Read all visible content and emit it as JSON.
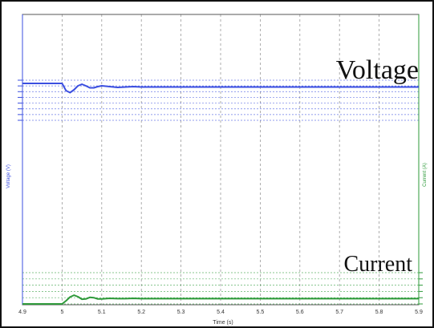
{
  "chart_data": {
    "type": "line",
    "xlabel": "Time (s)",
    "ylabel_left": "Voltage (V)",
    "ylabel_right": "Current (A)",
    "xlim": [
      4.9,
      5.9
    ],
    "x_ticks": [
      "4.9",
      "5",
      "5.1",
      "5.2",
      "5.3",
      "5.4",
      "5.5",
      "5.6",
      "5.7",
      "5.8",
      "5.9"
    ],
    "grid": true,
    "annotations": [
      {
        "text": "Voltage",
        "near": "top-right"
      },
      {
        "text": "Current",
        "near": "bottom-right"
      }
    ],
    "colors": {
      "voltage": "#3b4fe0",
      "current": "#2e9a3a",
      "grid": "#9a9a9a",
      "frame": "#111111"
    },
    "series": [
      {
        "key": "voltage",
        "x": [
          4.9,
          4.99,
          5.0,
          5.01,
          5.02,
          5.03,
          5.04,
          5.05,
          5.06,
          5.07,
          5.08,
          5.09,
          5.1,
          5.12,
          5.14,
          5.16,
          5.18,
          5.2,
          5.25,
          5.3,
          5.4,
          5.6,
          5.9
        ],
        "y": [
          0.92,
          0.92,
          0.92,
          0.74,
          0.69,
          0.76,
          0.86,
          0.9,
          0.86,
          0.81,
          0.81,
          0.84,
          0.86,
          0.84,
          0.82,
          0.83,
          0.84,
          0.83,
          0.83,
          0.83,
          0.83,
          0.83,
          0.83
        ]
      },
      {
        "key": "current",
        "x": [
          4.9,
          4.99,
          5.0,
          5.01,
          5.02,
          5.03,
          5.04,
          5.05,
          5.06,
          5.07,
          5.08,
          5.09,
          5.1,
          5.12,
          5.14,
          5.16,
          5.18,
          5.2,
          5.25,
          5.3,
          5.4,
          5.6,
          5.9
        ],
        "y": [
          0.0,
          0.0,
          0.0,
          0.1,
          0.22,
          0.28,
          0.23,
          0.15,
          0.16,
          0.21,
          0.2,
          0.16,
          0.16,
          0.18,
          0.17,
          0.17,
          0.18,
          0.17,
          0.17,
          0.17,
          0.17,
          0.17,
          0.17
        ]
      }
    ]
  }
}
